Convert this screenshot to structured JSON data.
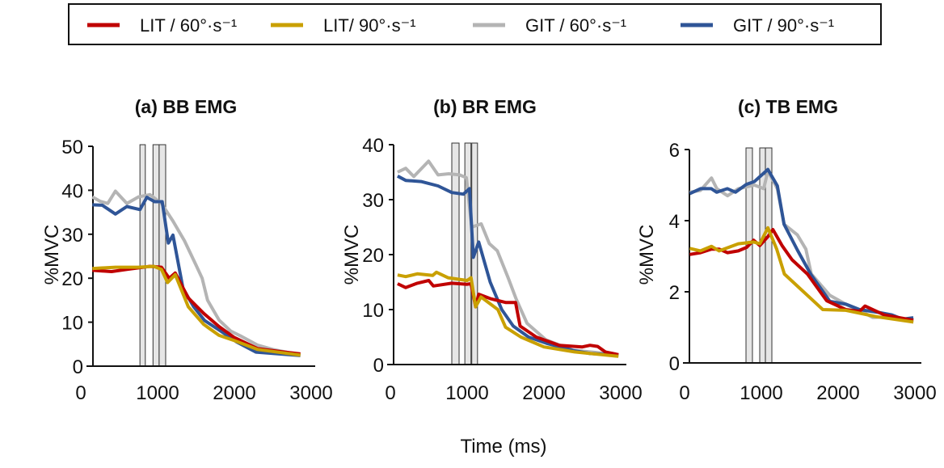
{
  "chart_data": {
    "type": "line",
    "xlabel": "Time (ms)",
    "legend": {
      "placement": "top",
      "entries": [
        {
          "label": "LIT / 60°·s⁻¹",
          "color": "#c00000"
        },
        {
          "label": "LIT/ 90°·s⁻¹",
          "color": "#c9a000"
        },
        {
          "label": "GIT / 60°·s⁻¹",
          "color": "#b4b4b4"
        },
        {
          "label": "GIT / 90°·s⁻¹",
          "color": "#2f5597"
        }
      ]
    },
    "panels": [
      {
        "title": "(a) BB EMG",
        "ylabel": "%MVC",
        "xlim": [
          0,
          3000
        ],
        "ylim": [
          0,
          50
        ],
        "xticks": [
          "0",
          "1000",
          "2000",
          "3000"
        ],
        "yticks": [
          "0",
          "10",
          "20",
          "30",
          "40",
          "50"
        ],
        "shaded_intervals_ms": [
          [
            770,
            840
          ],
          [
            940,
            1020
          ],
          [
            1020,
            1105
          ]
        ],
        "series": [
          {
            "name": "LIT / 60°·s⁻¹",
            "points": [
              [
                150,
                21.8
              ],
              [
                400,
                21.5
              ],
              [
                600,
                22
              ],
              [
                900,
                22.7
              ],
              [
                1050,
                22.5
              ],
              [
                1150,
                20
              ],
              [
                1230,
                21.2
              ],
              [
                1400,
                15.5
              ],
              [
                1600,
                12
              ],
              [
                1800,
                9
              ],
              [
                2000,
                6.5
              ],
              [
                2300,
                4
              ],
              [
                2600,
                3.3
              ],
              [
                2860,
                2.8
              ]
            ]
          },
          {
            "name": "LIT/ 90°·s⁻¹",
            "points": [
              [
                150,
                22.2
              ],
              [
                450,
                22.5
              ],
              [
                750,
                22.5
              ],
              [
                950,
                22.7
              ],
              [
                1050,
                22
              ],
              [
                1130,
                19
              ],
              [
                1230,
                20.8
              ],
              [
                1400,
                13.5
              ],
              [
                1600,
                9.5
              ],
              [
                1800,
                7
              ],
              [
                2000,
                5.8
              ],
              [
                2300,
                3.8
              ],
              [
                2860,
                2.5
              ]
            ]
          },
          {
            "name": "GIT / 60°·s⁻¹",
            "points": [
              [
                150,
                38.5
              ],
              [
                250,
                37.5
              ],
              [
                350,
                37
              ],
              [
                450,
                39.8
              ],
              [
                600,
                37
              ],
              [
                750,
                38.5
              ],
              [
                900,
                39
              ],
              [
                1050,
                37
              ],
              [
                1200,
                33
              ],
              [
                1350,
                28.5
              ],
              [
                1500,
                23
              ],
              [
                1580,
                20
              ],
              [
                1650,
                15
              ],
              [
                1800,
                10.5
              ],
              [
                1950,
                8
              ],
              [
                2100,
                6.7
              ],
              [
                2300,
                4.8
              ],
              [
                2500,
                3.8
              ],
              [
                2850,
                2.6
              ]
            ]
          },
          {
            "name": "GIT / 90°·s⁻¹",
            "points": [
              [
                150,
                36.7
              ],
              [
                280,
                36.6
              ],
              [
                450,
                34.6
              ],
              [
                600,
                36.3
              ],
              [
                770,
                35.6
              ],
              [
                860,
                38.4
              ],
              [
                960,
                37.4
              ],
              [
                1060,
                37.4
              ],
              [
                1140,
                28
              ],
              [
                1200,
                29.8
              ],
              [
                1330,
                17.7
              ],
              [
                1470,
                13.5
              ],
              [
                1610,
                10.4
              ],
              [
                1820,
                8
              ],
              [
                2030,
                5.5
              ],
              [
                2280,
                3.2
              ],
              [
                2860,
                2.4
              ]
            ]
          }
        ]
      },
      {
        "title": "(b) BR EMG",
        "ylabel": "%MVC",
        "xlim": [
          0,
          3000
        ],
        "ylim": [
          0,
          40
        ],
        "xticks": [
          "0",
          "1000",
          "2000",
          "3000"
        ],
        "yticks": [
          "0",
          "10",
          "20",
          "30",
          "40"
        ],
        "shaded_intervals_ms": [
          [
            800,
            895
          ],
          [
            970,
            1050
          ],
          [
            1060,
            1135
          ]
        ],
        "series": [
          {
            "name": "LIT / 60°·s⁻¹",
            "points": [
              [
                94,
                14.7
              ],
              [
                200,
                14
              ],
              [
                350,
                14.8
              ],
              [
                500,
                15.3
              ],
              [
                560,
                14.3
              ],
              [
                800,
                14.8
              ],
              [
                1000,
                14.6
              ],
              [
                1050,
                14.7
              ],
              [
                1110,
                10.5
              ],
              [
                1150,
                12.8
              ],
              [
                1300,
                12
              ],
              [
                1500,
                11.3
              ],
              [
                1630,
                11.3
              ],
              [
                1690,
                7
              ],
              [
                1900,
                5
              ],
              [
                2200,
                3.5
              ],
              [
                2500,
                3.2
              ],
              [
                2600,
                3.5
              ],
              [
                2700,
                3.3
              ],
              [
                2800,
                2.3
              ],
              [
                2970,
                1.8
              ]
            ]
          },
          {
            "name": "LIT/ 90°·s⁻¹",
            "points": [
              [
                94,
                16.3
              ],
              [
                200,
                16
              ],
              [
                350,
                16.5
              ],
              [
                550,
                16.2
              ],
              [
                600,
                16.8
              ],
              [
                750,
                15.8
              ],
              [
                1000,
                15.3
              ],
              [
                1050,
                15.8
              ],
              [
                1110,
                10.5
              ],
              [
                1180,
                12.3
              ],
              [
                1400,
                10
              ],
              [
                1500,
                6.8
              ],
              [
                1700,
                5
              ],
              [
                2000,
                3.2
              ],
              [
                2400,
                2.3
              ],
              [
                2970,
                1.5
              ]
            ]
          },
          {
            "name": "GIT / 60°·s⁻¹",
            "points": [
              [
                94,
                35
              ],
              [
                200,
                35.7
              ],
              [
                305,
                34.2
              ],
              [
                498,
                37
              ],
              [
                621,
                34.5
              ],
              [
                761,
                34.7
              ],
              [
                902,
                34.5
              ],
              [
                990,
                34
              ],
              [
                1060,
                25
              ],
              [
                1183,
                25.6
              ],
              [
                1288,
                22
              ],
              [
                1393,
                20.7
              ],
              [
                1534,
                15.8
              ],
              [
                1639,
                11.9
              ],
              [
                1780,
                7.5
              ],
              [
                2025,
                4.5
              ],
              [
                2376,
                2.6
              ],
              [
                2970,
                1.8
              ]
            ]
          },
          {
            "name": "GIT / 90°·s⁻¹",
            "points": [
              [
                94,
                34.3
              ],
              [
                200,
                33.5
              ],
              [
                400,
                33.3
              ],
              [
                621,
                32.5
              ],
              [
                800,
                31.3
              ],
              [
                950,
                31
              ],
              [
                1030,
                32
              ],
              [
                1080,
                19.5
              ],
              [
                1150,
                22.3
              ],
              [
                1300,
                15
              ],
              [
                1450,
                10
              ],
              [
                1600,
                7
              ],
              [
                1800,
                5
              ],
              [
                2050,
                3.8
              ],
              [
                2400,
                2.5
              ],
              [
                2600,
                2
              ],
              [
                2970,
                1.7
              ]
            ]
          }
        ]
      },
      {
        "title": "(c) TB EMG",
        "ylabel": "%MVC",
        "xlim": [
          0,
          3000
        ],
        "ylim": [
          0,
          6
        ],
        "xticks": [
          "0",
          "1000",
          "2000",
          "3000"
        ],
        "yticks": [
          "0",
          "2",
          "4",
          "6"
        ],
        "shaded_intervals_ms": [
          [
            800,
            884
          ],
          [
            979,
            1053
          ],
          [
            1053,
            1137
          ]
        ],
        "series": [
          {
            "name": "LIT / 60°·s⁻¹",
            "points": [
              [
                67,
                3.05
              ],
              [
                207,
                3.1
              ],
              [
                350,
                3.2
              ],
              [
                450,
                3.2
              ],
              [
                560,
                3.1
              ],
              [
                700,
                3.15
              ],
              [
                809,
                3.25
              ],
              [
                900,
                3.45
              ],
              [
                980,
                3.3
              ],
              [
                1085,
                3.55
              ],
              [
                1150,
                3.75
              ],
              [
                1270,
                3.3
              ],
              [
                1400,
                2.9
              ],
              [
                1600,
                2.5
              ],
              [
                1850,
                1.75
              ],
              [
                2100,
                1.5
              ],
              [
                2280,
                1.45
              ],
              [
                2350,
                1.6
              ],
              [
                2600,
                1.35
              ],
              [
                2980,
                1.2
              ]
            ]
          },
          {
            "name": "LIT/ 90°·s⁻¹",
            "points": [
              [
                67,
                3.22
              ],
              [
                207,
                3.15
              ],
              [
                350,
                3.28
              ],
              [
                450,
                3.15
              ],
              [
                700,
                3.35
              ],
              [
                900,
                3.4
              ],
              [
                980,
                3.35
              ],
              [
                1085,
                3.8
              ],
              [
                1200,
                3.2
              ],
              [
                1300,
                2.5
              ],
              [
                1500,
                2.1
              ],
              [
                1700,
                1.7
              ],
              [
                1800,
                1.5
              ],
              [
                2100,
                1.48
              ],
              [
                2500,
                1.3
              ],
              [
                2980,
                1.15
              ]
            ]
          },
          {
            "name": "GIT / 60°·s⁻¹",
            "points": [
              [
                67,
                4.8
              ],
              [
                207,
                4.85
              ],
              [
                350,
                5.2
              ],
              [
                420,
                4.9
              ],
              [
                560,
                4.7
              ],
              [
                700,
                4.9
              ],
              [
                909,
                5
              ],
              [
                1030,
                4.9
              ],
              [
                1085,
                5.4
              ],
              [
                1208,
                4.9
              ],
              [
                1296,
                3.9
              ],
              [
                1470,
                3.6
              ],
              [
                1580,
                3.2
              ],
              [
                1650,
                2.5
              ],
              [
                1893,
                1.9
              ],
              [
                2100,
                1.65
              ],
              [
                2300,
                1.45
              ],
              [
                2450,
                1.28
              ],
              [
                2700,
                1.3
              ],
              [
                2980,
                1.15
              ]
            ]
          },
          {
            "name": "GIT / 90°·s⁻¹",
            "points": [
              [
                67,
                4.76
              ],
              [
                207,
                4.9
              ],
              [
                348,
                4.9
              ],
              [
                418,
                4.8
              ],
              [
                558,
                4.9
              ],
              [
                664,
                4.8
              ],
              [
                804,
                5.02
              ],
              [
                909,
                5.1
              ],
              [
                1085,
                5.44
              ],
              [
                1208,
                4.98
              ],
              [
                1296,
                3.9
              ],
              [
                1471,
                3.17
              ],
              [
                1647,
                2.48
              ],
              [
                1893,
                1.73
              ],
              [
                2103,
                1.65
              ],
              [
                2279,
                1.5
              ],
              [
                2525,
                1.42
              ],
              [
                2700,
                1.35
              ],
              [
                2840,
                1.23
              ],
              [
                2980,
                1.27
              ]
            ]
          }
        ]
      }
    ]
  }
}
